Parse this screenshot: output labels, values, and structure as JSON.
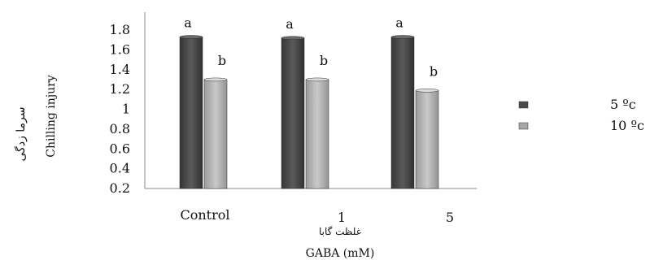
{
  "chart_data": {
    "type": "bar",
    "categories": [
      "Control",
      "1",
      "5"
    ],
    "series": [
      {
        "name": "5 ºc",
        "values": [
          1.73,
          1.72,
          1.73
        ],
        "letters": [
          "a",
          "a",
          "a"
        ],
        "color": "#4a4a4a"
      },
      {
        "name": "10 ºc",
        "values": [
          1.3,
          1.3,
          1.19
        ],
        "letters": [
          "b",
          "b",
          "b"
        ],
        "color": "#a8a8a8"
      }
    ],
    "ylim": [
      0.2,
      1.8
    ],
    "yticks": [
      "1.8",
      "1.6",
      "1.4",
      "1.2",
      "1",
      "0.8",
      "0.6",
      "0.4",
      "0.2"
    ],
    "ylabel_fa": "سرما زدگی",
    "ylabel_en": "Chilling injury",
    "xlabel_fa": "غلظت گابا",
    "xlabel_en": "GABA (mM)",
    "legend_position": "right",
    "grid": false
  }
}
